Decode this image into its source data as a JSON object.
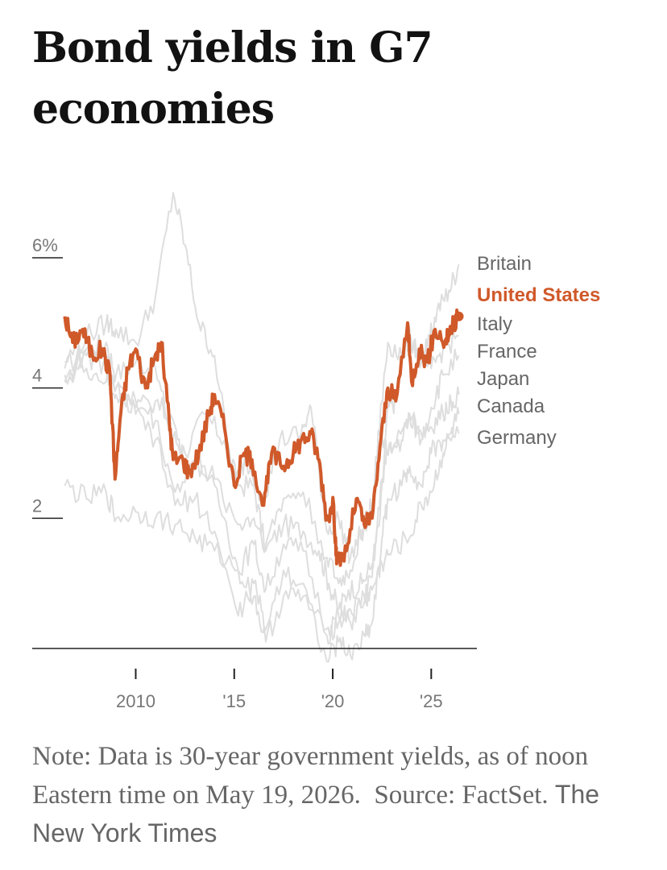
{
  "title": "Bond yields in G7 economies",
  "note": {
    "text": "Note: Data is 30-year government yields, as of noon Eastern time on May 19, 2026.  Source: FactSet.",
    "credit": "The New York Times"
  },
  "colors": {
    "highlight": "#d0592a",
    "background_series": "#dedede",
    "axis": "#222222",
    "text": "#666666"
  },
  "chart_data": {
    "type": "line",
    "title": "Bond yields in G7 economies",
    "xlabel": "",
    "ylabel": "",
    "xlim": [
      2006.3,
      2026.5
    ],
    "ylim": [
      0,
      6
    ],
    "y_ticks": [
      {
        "value": 6,
        "label": "6%"
      },
      {
        "value": 4,
        "label": "4"
      },
      {
        "value": 2,
        "label": "2"
      }
    ],
    "x_ticks": [
      {
        "value": 2010,
        "label": "2010"
      },
      {
        "value": 2015,
        "label": "'15"
      },
      {
        "value": 2020,
        "label": "'20"
      },
      {
        "value": 2025,
        "label": "'25"
      }
    ],
    "grid": false,
    "legend_position": "right, ordered by latest value",
    "highlight_series": "United States",
    "series": [
      {
        "name": "Britain",
        "points": [
          [
            2006.4,
            4.3
          ],
          [
            2007.5,
            4.6
          ],
          [
            2008.5,
            4.7
          ],
          [
            2009,
            4.2
          ],
          [
            2010,
            4.4
          ],
          [
            2011,
            4.3
          ],
          [
            2011.8,
            3.3
          ],
          [
            2012.5,
            3.0
          ],
          [
            2013.5,
            3.6
          ],
          [
            2014.5,
            3.2
          ],
          [
            2015.2,
            2.5
          ],
          [
            2016,
            2.5
          ],
          [
            2016.6,
            1.5
          ],
          [
            2017.5,
            1.9
          ],
          [
            2018.5,
            1.8
          ],
          [
            2019.3,
            1.5
          ],
          [
            2019.8,
            1.0
          ],
          [
            2020.3,
            0.6
          ],
          [
            2020.8,
            0.9
          ],
          [
            2021.5,
            1.0
          ],
          [
            2022.0,
            1.3
          ],
          [
            2022.4,
            2.0
          ],
          [
            2022.8,
            3.7
          ],
          [
            2023.2,
            3.8
          ],
          [
            2023.8,
            4.9
          ],
          [
            2024.3,
            4.5
          ],
          [
            2024.8,
            4.6
          ],
          [
            2025.3,
            5.2
          ],
          [
            2025.9,
            5.5
          ],
          [
            2026.4,
            5.9
          ]
        ]
      },
      {
        "name": "United States",
        "points": [
          [
            2006.4,
            5.1
          ],
          [
            2006.8,
            4.7
          ],
          [
            2007.3,
            4.9
          ],
          [
            2007.8,
            4.5
          ],
          [
            2008.3,
            4.6
          ],
          [
            2008.7,
            4.2
          ],
          [
            2008.95,
            2.6
          ],
          [
            2009.2,
            3.5
          ],
          [
            2009.6,
            4.3
          ],
          [
            2010.0,
            4.6
          ],
          [
            2010.5,
            4.0
          ],
          [
            2010.9,
            4.4
          ],
          [
            2011.3,
            4.7
          ],
          [
            2011.7,
            3.5
          ],
          [
            2011.9,
            2.9
          ],
          [
            2012.4,
            2.9
          ],
          [
            2012.7,
            2.7
          ],
          [
            2013.2,
            3.0
          ],
          [
            2013.7,
            3.6
          ],
          [
            2014.0,
            3.9
          ],
          [
            2014.5,
            3.4
          ],
          [
            2015.0,
            2.5
          ],
          [
            2015.5,
            3.0
          ],
          [
            2015.9,
            2.9
          ],
          [
            2016.5,
            2.2
          ],
          [
            2016.9,
            3.0
          ],
          [
            2017.5,
            2.8
          ],
          [
            2018.0,
            3.0
          ],
          [
            2018.4,
            3.2
          ],
          [
            2018.9,
            3.3
          ],
          [
            2019.3,
            2.9
          ],
          [
            2019.7,
            2.0
          ],
          [
            2020.05,
            2.2
          ],
          [
            2020.2,
            1.3
          ],
          [
            2020.7,
            1.5
          ],
          [
            2021.2,
            2.3
          ],
          [
            2021.6,
            1.9
          ],
          [
            2022.0,
            2.0
          ],
          [
            2022.4,
            3.1
          ],
          [
            2022.8,
            4.0
          ],
          [
            2023.2,
            3.8
          ],
          [
            2023.8,
            5.0
          ],
          [
            2024.0,
            4.1
          ],
          [
            2024.4,
            4.6
          ],
          [
            2024.8,
            4.4
          ],
          [
            2025.2,
            4.9
          ],
          [
            2025.7,
            4.7
          ],
          [
            2026.0,
            4.9
          ],
          [
            2026.4,
            5.1
          ]
        ]
      },
      {
        "name": "Italy",
        "points": [
          [
            2006.4,
            4.4
          ],
          [
            2007.5,
            4.8
          ],
          [
            2008.5,
            5.0
          ],
          [
            2009,
            4.9
          ],
          [
            2010,
            4.7
          ],
          [
            2011,
            5.4
          ],
          [
            2011.9,
            7.0
          ],
          [
            2012.5,
            6.2
          ],
          [
            2013.2,
            5.0
          ],
          [
            2014.0,
            4.5
          ],
          [
            2015.0,
            2.5
          ],
          [
            2015.6,
            2.9
          ],
          [
            2016.5,
            2.3
          ],
          [
            2017.3,
            3.2
          ],
          [
            2018.4,
            3.3
          ],
          [
            2018.9,
            3.7
          ],
          [
            2019.7,
            1.8
          ],
          [
            2020.3,
            2.0
          ],
          [
            2020.9,
            1.4
          ],
          [
            2021.6,
            1.9
          ],
          [
            2022.0,
            2.2
          ],
          [
            2022.5,
            3.8
          ],
          [
            2022.8,
            4.7
          ],
          [
            2023.5,
            4.5
          ],
          [
            2023.9,
            4.8
          ],
          [
            2024.5,
            4.4
          ],
          [
            2025.0,
            4.3
          ],
          [
            2025.6,
            4.6
          ],
          [
            2026.4,
            4.8
          ]
        ]
      },
      {
        "name": "France",
        "points": [
          [
            2006.4,
            4.1
          ],
          [
            2007.5,
            4.6
          ],
          [
            2008.5,
            4.5
          ],
          [
            2009,
            4.0
          ],
          [
            2010,
            3.7
          ],
          [
            2011,
            3.8
          ],
          [
            2011.9,
            3.5
          ],
          [
            2012.5,
            2.8
          ],
          [
            2013.5,
            2.8
          ],
          [
            2014.5,
            2.0
          ],
          [
            2015.2,
            1.2
          ],
          [
            2016,
            1.6
          ],
          [
            2016.6,
            0.9
          ],
          [
            2017.5,
            1.6
          ],
          [
            2018.5,
            1.5
          ],
          [
            2019.7,
            0.3
          ],
          [
            2020.3,
            0.5
          ],
          [
            2020.9,
            0.4
          ],
          [
            2021.6,
            0.8
          ],
          [
            2022.0,
            1.1
          ],
          [
            2022.5,
            2.6
          ],
          [
            2022.8,
            3.0
          ],
          [
            2023.5,
            3.2
          ],
          [
            2023.9,
            3.6
          ],
          [
            2024.5,
            3.2
          ],
          [
            2025.0,
            3.7
          ],
          [
            2025.6,
            4.2
          ],
          [
            2026.4,
            4.5
          ]
        ]
      },
      {
        "name": "Japan",
        "points": [
          [
            2006.4,
            2.5
          ],
          [
            2007.5,
            2.3
          ],
          [
            2008.5,
            2.4
          ],
          [
            2009,
            2.0
          ],
          [
            2010,
            2.1
          ],
          [
            2011,
            2.0
          ],
          [
            2012,
            1.9
          ],
          [
            2013,
            1.7
          ],
          [
            2014,
            1.5
          ],
          [
            2015.2,
            1.2
          ],
          [
            2016,
            0.8
          ],
          [
            2016.6,
            0.1
          ],
          [
            2017.5,
            0.8
          ],
          [
            2018.5,
            0.8
          ],
          [
            2019.7,
            0.2
          ],
          [
            2020.3,
            0.4
          ],
          [
            2020.9,
            0.6
          ],
          [
            2021.6,
            0.7
          ],
          [
            2022.0,
            0.9
          ],
          [
            2022.5,
            1.3
          ],
          [
            2023.0,
            1.5
          ],
          [
            2023.9,
            1.7
          ],
          [
            2024.5,
            2.2
          ],
          [
            2025.0,
            2.4
          ],
          [
            2025.6,
            3.0
          ],
          [
            2026.0,
            3.3
          ],
          [
            2026.4,
            3.6
          ]
        ]
      },
      {
        "name": "Canada",
        "points": [
          [
            2006.4,
            4.2
          ],
          [
            2007.5,
            4.3
          ],
          [
            2008.5,
            4.1
          ],
          [
            2009,
            3.9
          ],
          [
            2010,
            3.8
          ],
          [
            2011,
            3.5
          ],
          [
            2012,
            2.4
          ],
          [
            2013,
            2.9
          ],
          [
            2014,
            2.6
          ],
          [
            2015.2,
            1.9
          ],
          [
            2016,
            2.0
          ],
          [
            2016.6,
            1.6
          ],
          [
            2017.5,
            2.3
          ],
          [
            2018.5,
            2.4
          ],
          [
            2019.7,
            1.4
          ],
          [
            2020.3,
            1.0
          ],
          [
            2020.9,
            1.2
          ],
          [
            2021.6,
            1.9
          ],
          [
            2022.0,
            2.1
          ],
          [
            2022.5,
            3.2
          ],
          [
            2023.0,
            3.0
          ],
          [
            2023.9,
            3.6
          ],
          [
            2024.5,
            3.3
          ],
          [
            2025.0,
            3.4
          ],
          [
            2025.6,
            3.6
          ],
          [
            2026.0,
            3.8
          ],
          [
            2026.4,
            3.9
          ]
        ]
      },
      {
        "name": "Germany",
        "points": [
          [
            2006.4,
            4.1
          ],
          [
            2007.5,
            4.5
          ],
          [
            2008.5,
            4.3
          ],
          [
            2009,
            4.0
          ],
          [
            2010,
            3.6
          ],
          [
            2011,
            3.2
          ],
          [
            2012,
            2.2
          ],
          [
            2013,
            2.3
          ],
          [
            2014,
            1.8
          ],
          [
            2015.2,
            0.5
          ],
          [
            2016,
            1.0
          ],
          [
            2016.6,
            0.3
          ],
          [
            2017.5,
            1.2
          ],
          [
            2018.5,
            1.0
          ],
          [
            2019.7,
            -0.2
          ],
          [
            2020.3,
            0.1
          ],
          [
            2020.9,
            -0.1
          ],
          [
            2021.6,
            0.2
          ],
          [
            2022.0,
            0.4
          ],
          [
            2022.5,
            1.7
          ],
          [
            2022.8,
            2.3
          ],
          [
            2023.5,
            2.5
          ],
          [
            2023.9,
            2.8
          ],
          [
            2024.5,
            2.5
          ],
          [
            2025.0,
            3.0
          ],
          [
            2025.6,
            3.2
          ],
          [
            2026.4,
            3.3
          ]
        ]
      }
    ]
  }
}
